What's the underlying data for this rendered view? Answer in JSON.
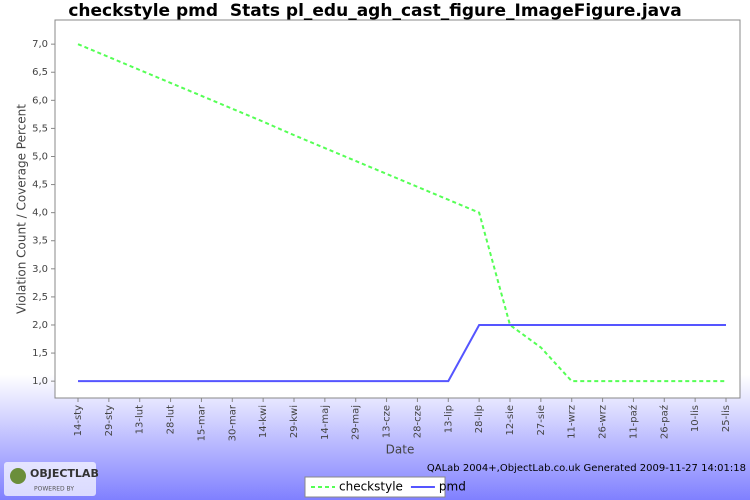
{
  "chart_data": {
    "type": "line",
    "title": "checkstyle pmd  Stats pl_edu_agh_cast_figure_ImageFigure.java",
    "x_label": "Date",
    "y_label": "Violation Count / Coverage Percent",
    "categories": [
      "14-sty",
      "29-sty",
      "13-lut",
      "28-lut",
      "15-mar",
      "30-mar",
      "14-kwi",
      "29-kwi",
      "14-maj",
      "29-maj",
      "13-cze",
      "28-cze",
      "13-lip",
      "28-lip",
      "12-sie",
      "27-sie",
      "11-wrz",
      "26-wrz",
      "11-paź",
      "26-paź",
      "10-lis",
      "25-lis"
    ],
    "series": [
      {
        "name": "checkstyle",
        "color": "#55ff55",
        "dashed": true,
        "values": [
          7.0,
          6.77,
          6.54,
          6.31,
          6.08,
          5.85,
          5.62,
          5.38,
          5.15,
          4.92,
          4.69,
          4.46,
          4.23,
          4.0,
          2.0,
          1.6,
          1.0,
          1.0,
          1.0,
          1.0,
          1.0,
          1.0
        ]
      },
      {
        "name": "pmd",
        "color": "#5555ff",
        "dashed": false,
        "values": [
          1,
          1,
          1,
          1,
          1,
          1,
          1,
          1,
          1,
          1,
          1,
          1,
          1,
          2,
          2,
          2,
          2,
          2,
          2,
          2,
          2,
          2
        ]
      }
    ],
    "ylim": [
      0.7,
      7.43
    ],
    "yticks": [
      {
        "value": 1,
        "label": "1,0"
      },
      {
        "value": 1.5,
        "label": "1,5"
      },
      {
        "value": 2,
        "label": "2,0"
      },
      {
        "value": 2.5,
        "label": "2,5"
      },
      {
        "value": 3,
        "label": "3,0"
      },
      {
        "value": 3.5,
        "label": "3,5"
      },
      {
        "value": 4,
        "label": "4,0"
      },
      {
        "value": 4.5,
        "label": "4,5"
      },
      {
        "value": 5,
        "label": "5,0"
      },
      {
        "value": 5.5,
        "label": "5,5"
      },
      {
        "value": 6,
        "label": "6,0"
      },
      {
        "value": 6.5,
        "label": "6,5"
      },
      {
        "value": 7,
        "label": "7,0"
      }
    ],
    "grid": false,
    "legend": "bottom",
    "footer": "QALab 2004+,ObjectLab.co.uk Generated 2009-11-27 14:01:18",
    "logo": "OBJECTLAB",
    "logo_sub": "POWERED BY"
  }
}
